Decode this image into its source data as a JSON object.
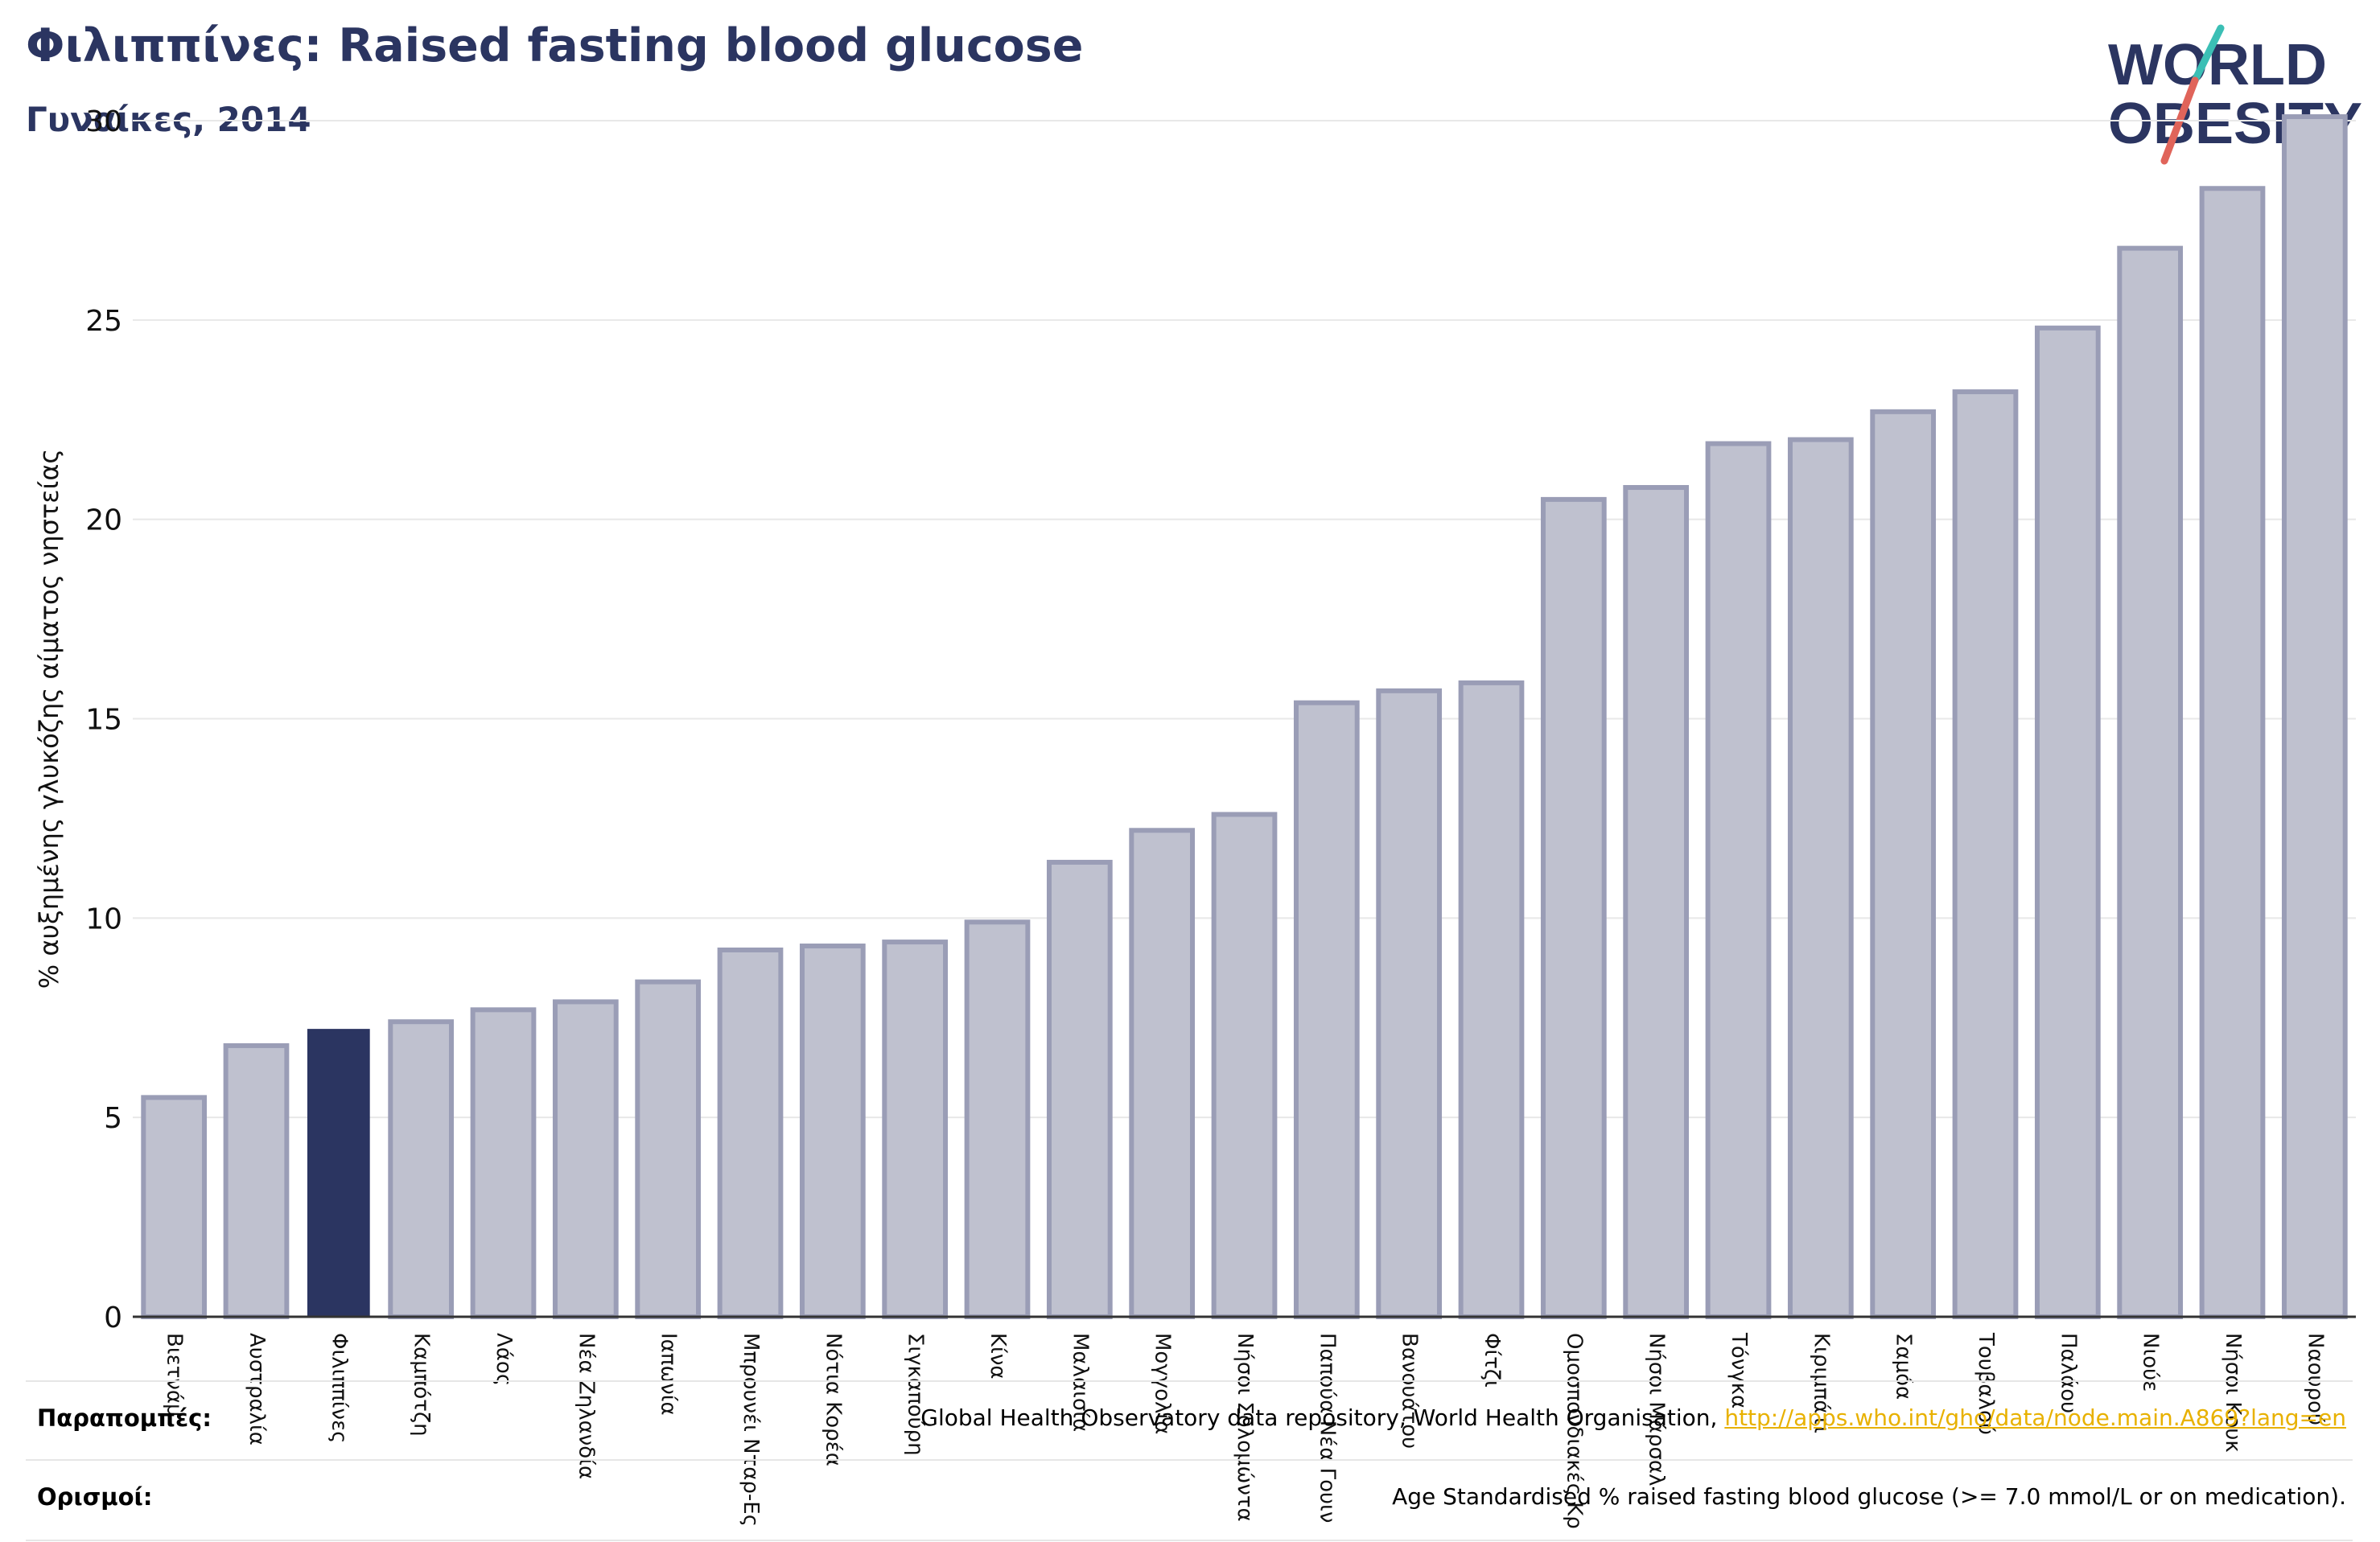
{
  "header": {
    "title": "Φιλιππίνες: Raised fasting blood glucose",
    "subtitle": "Γυναίκες, 2014"
  },
  "logo": {
    "line1": "WORLD",
    "line2": "OBESITY"
  },
  "footer": {
    "sources_label": "Παραπομπές:",
    "sources_text": "Global Health Observatory data repository, World Health Organisation, ",
    "sources_link": "http://apps.who.int/gho/data/node.main.A869?lang=en",
    "definitions_label": "Ορισμοί:",
    "definitions_text": "Age Standardised % raised fasting blood glucose (>= 7.0 mmol/L or on medication)."
  },
  "colors": {
    "title": "#2b3561",
    "bar": "#bfc1cf",
    "bar_border": "#9a9db6",
    "highlight": "#2b3561",
    "grid": "#e8e8e8",
    "logo_slash_teal": "#3bbfb5",
    "logo_slash_red": "#e0645a",
    "link": "#e8b100"
  },
  "chart_data": {
    "type": "bar",
    "title": "Φιλιππίνες: Raised fasting blood glucose",
    "subtitle": "Γυναίκες, 2014",
    "ylabel": "% αυξημένης γλυκόζης αίματος νηστείας",
    "xlabel": "",
    "ylim": [
      0,
      30
    ],
    "yticks": [
      0,
      5,
      10,
      15,
      20,
      25,
      30
    ],
    "grid": true,
    "highlight_category": "Φιλιππίνες",
    "categories": [
      "Βιετνάμ",
      "Αυστραλία",
      "Φιλιππίνες",
      "Καμπότζη",
      "Λάος",
      "Νέα Ζηλανδία",
      "Ιαπωνία",
      "Μπρουνέι Νταρ-Ες",
      "Νότια Κορέα",
      "Σιγκαπούρη",
      "Κίνα",
      "Μαλαισία",
      "Μογγολία",
      "Νήσοι Σολομώντα",
      "Παπούα Νέα Γουιν",
      "Βανουάτου",
      "Φίτζι",
      "Ομοσπονδιακές Κρ",
      "Νήσοι Μάρσαλ",
      "Τόνγκα",
      "Κιριμπάτι",
      "Σαμόα",
      "Τουβαλού",
      "Παλάου",
      "Νιούε",
      "Νήσοι Κουκ",
      "Ναουρού"
    ],
    "values": [
      5.5,
      6.8,
      7.2,
      7.4,
      7.7,
      7.9,
      8.4,
      9.2,
      9.3,
      9.4,
      9.9,
      11.4,
      12.2,
      12.6,
      15.4,
      15.7,
      15.9,
      20.5,
      20.8,
      21.9,
      22.0,
      22.7,
      23.2,
      24.8,
      26.8,
      28.3,
      30.1
    ]
  }
}
